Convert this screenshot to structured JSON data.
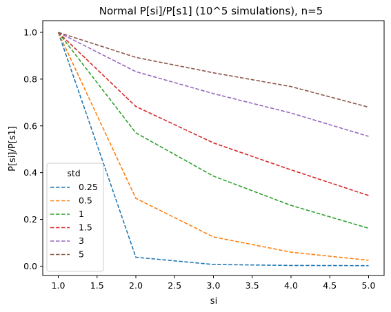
{
  "chart_data": {
    "type": "line",
    "title": "Normal P[si]/P[s1] (10^5 simulations), n=5",
    "xlabel": "si",
    "ylabel": "P[si]/P[s1]",
    "x": [
      1.0,
      2.0,
      3.0,
      4.0,
      5.0
    ],
    "xlim": [
      0.8,
      5.2
    ],
    "ylim": [
      -0.04,
      1.05
    ],
    "xticks": [
      "1.0",
      "1.5",
      "2.0",
      "2.5",
      "3.0",
      "3.5",
      "4.0",
      "4.5",
      "5.0"
    ],
    "yticks": [
      "0.0",
      "0.2",
      "0.4",
      "0.6",
      "0.8",
      "1.0"
    ],
    "grid": false,
    "line_style": "dashed",
    "legend": {
      "title": "std",
      "placement": "lower-left"
    },
    "series": [
      {
        "name": "0.25",
        "color": "#1f77b4",
        "values": [
          1.0,
          0.038,
          0.007,
          0.003,
          0.002
        ]
      },
      {
        "name": "0.5",
        "color": "#ff7f0e",
        "values": [
          1.0,
          0.29,
          0.125,
          0.06,
          0.025
        ]
      },
      {
        "name": "1",
        "color": "#2ca02c",
        "values": [
          1.0,
          0.57,
          0.385,
          0.26,
          0.162
        ]
      },
      {
        "name": "1.5",
        "color": "#d62728",
        "values": [
          1.0,
          0.683,
          0.527,
          0.412,
          0.302
        ]
      },
      {
        "name": "3",
        "color": "#9467bd",
        "values": [
          1.0,
          0.832,
          0.738,
          0.655,
          0.555
        ]
      },
      {
        "name": "5",
        "color": "#8c564b",
        "values": [
          1.0,
          0.893,
          0.827,
          0.768,
          0.68
        ]
      }
    ]
  }
}
